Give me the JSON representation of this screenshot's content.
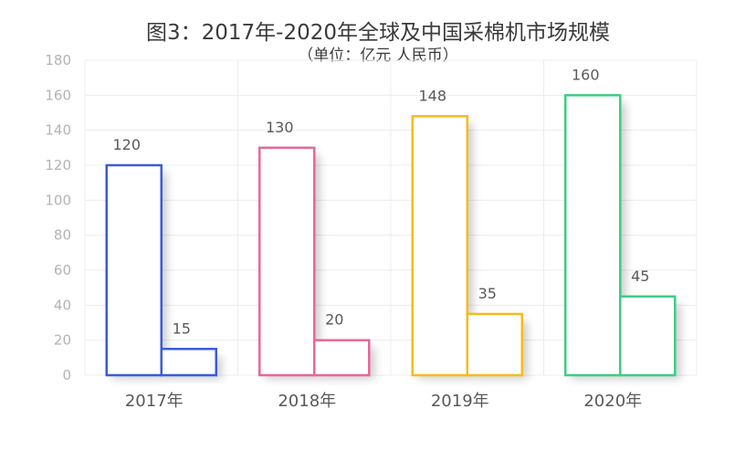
{
  "chart_data": {
    "type": "bar",
    "title": "图3：2017年-2020年全球及中国采棉机市场规模",
    "subtitle": "（单位：亿元  人民币）",
    "categories": [
      "2017年",
      "2018年",
      "2019年",
      "2020年"
    ],
    "colors": [
      "#3a5bd9",
      "#e8669a",
      "#f5bc1c",
      "#3fcc85"
    ],
    "series": [
      {
        "values": [
          120,
          130,
          148,
          160
        ]
      },
      {
        "values": [
          15,
          20,
          35,
          45
        ]
      }
    ],
    "ylim": [
      0,
      180
    ],
    "yticks": [
      0,
      20,
      40,
      60,
      80,
      100,
      120,
      140,
      160,
      180
    ],
    "grid": true,
    "legend": "none"
  }
}
